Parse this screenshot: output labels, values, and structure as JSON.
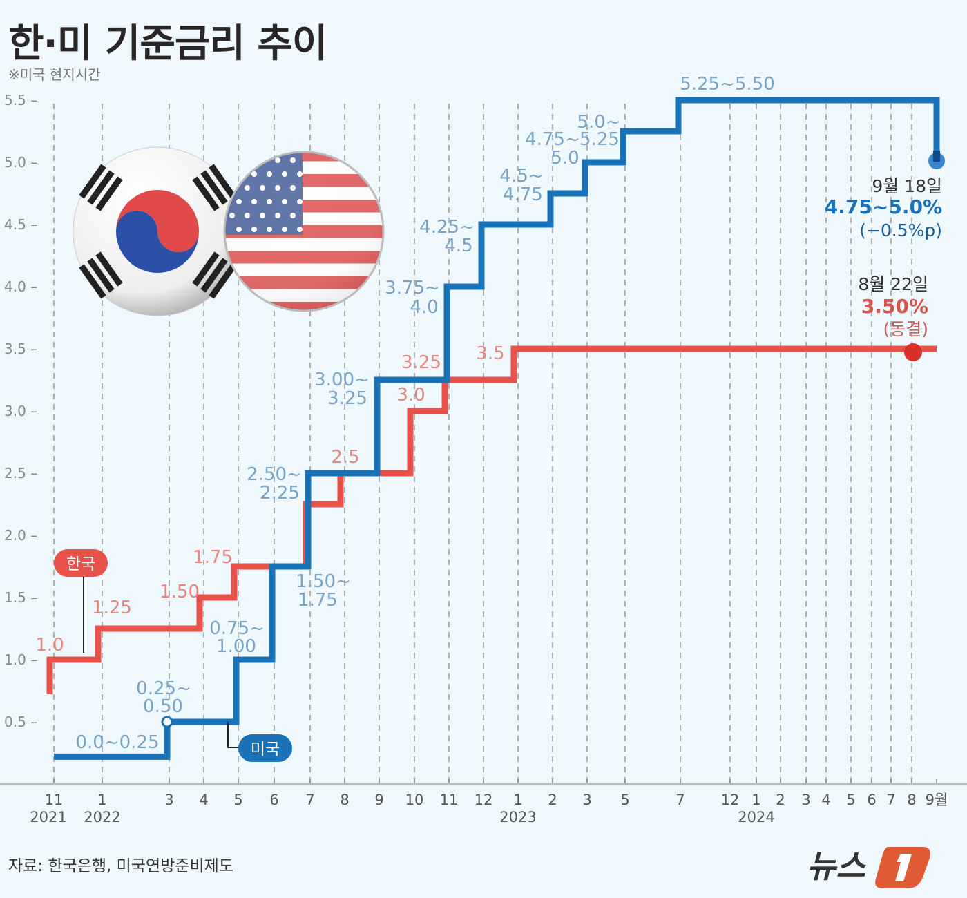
{
  "title": "한·미 기준금리 추이",
  "subtitle": "※미국 현지시간",
  "source": "자료: 한국은행, 미국연방준비제도",
  "logo_text": "뉴스1",
  "colors": {
    "korea": "#e8524a",
    "us": "#1a72b8",
    "korea_label": "#e8857f",
    "us_label": "#7ba3c4",
    "background": "#eff8fd"
  },
  "chart_data": {
    "type": "line",
    "step": true,
    "ylim": [
      0,
      5.5
    ],
    "yticks": [
      "5.5",
      "5.0",
      "4.5",
      "4.0",
      "3.5",
      "3.0",
      "2.5",
      "2.0",
      "1.5",
      "1.0",
      "0.5"
    ],
    "x_scale": "categorical-months",
    "xticks": [
      {
        "x": "2021-11",
        "month": "11",
        "year": "2021"
      },
      {
        "x": "2022-01",
        "month": "1",
        "year": "2022"
      },
      {
        "x": "2022-03",
        "month": "3"
      },
      {
        "x": "2022-04",
        "month": "4"
      },
      {
        "x": "2022-05",
        "month": "5"
      },
      {
        "x": "2022-06",
        "month": "6"
      },
      {
        "x": "2022-07",
        "month": "7"
      },
      {
        "x": "2022-08",
        "month": "8"
      },
      {
        "x": "2022-09",
        "month": "9"
      },
      {
        "x": "2022-10",
        "month": "10"
      },
      {
        "x": "2022-11",
        "month": "11"
      },
      {
        "x": "2022-12",
        "month": "12"
      },
      {
        "x": "2023-01",
        "month": "1",
        "year": "2023"
      },
      {
        "x": "2023-02",
        "month": "2"
      },
      {
        "x": "2023-03",
        "month": "3"
      },
      {
        "x": "2023-05",
        "month": "5"
      },
      {
        "x": "2023-07",
        "month": "7"
      },
      {
        "x": "2023-12",
        "month": "12"
      },
      {
        "x": "2024-01",
        "month": "1",
        "year": "2024"
      },
      {
        "x": "2024-02",
        "month": "2"
      },
      {
        "x": "2024-03",
        "month": "3"
      },
      {
        "x": "2024-04",
        "month": "4"
      },
      {
        "x": "2024-05",
        "month": "5"
      },
      {
        "x": "2024-06",
        "month": "6"
      },
      {
        "x": "2024-07",
        "month": "7"
      },
      {
        "x": "2024-08",
        "month": "8"
      },
      {
        "x": "2024-09",
        "month": "9월"
      }
    ],
    "series": [
      {
        "name": "한국",
        "key": "korea",
        "start_value": 0.75,
        "points": [
          [
            "2021-11",
            1.0
          ],
          [
            "2022-01",
            1.25
          ],
          [
            "2022-04",
            1.5
          ],
          [
            "2022-05",
            1.75
          ],
          [
            "2022-07",
            2.25
          ],
          [
            "2022-08",
            2.5
          ],
          [
            "2022-10",
            3.0
          ],
          [
            "2022-11",
            3.25
          ],
          [
            "2023-01",
            3.5
          ],
          [
            "2024-09",
            3.5
          ]
        ],
        "labels": [
          "1.0",
          "1.25",
          "1.50",
          "1.75",
          "2.5",
          "3.0",
          "3.25",
          "3.5"
        ]
      },
      {
        "name": "미국",
        "key": "us",
        "start_value": 0.25,
        "points": [
          [
            "2021-11",
            0.25
          ],
          [
            "2022-03",
            0.5
          ],
          [
            "2022-05",
            1.0
          ],
          [
            "2022-06",
            1.75
          ],
          [
            "2022-07",
            2.5
          ],
          [
            "2022-09",
            3.25
          ],
          [
            "2022-11",
            4.0
          ],
          [
            "2022-12",
            4.5
          ],
          [
            "2023-02",
            4.75
          ],
          [
            "2023-03",
            5.0
          ],
          [
            "2023-05",
            5.25
          ],
          [
            "2023-07",
            5.5
          ],
          [
            "2024-09",
            5.0
          ]
        ],
        "labels": [
          "0.0~0.25",
          "0.25~",
          "0.50",
          "0.75~",
          "1.00",
          "1.50~",
          "1.75",
          "2.50~",
          "2.25",
          "3.00~",
          "3.25",
          "3.75~",
          "4.0",
          "4.25~",
          "4.5",
          "4.5~",
          "4.75",
          "5.0~",
          "4.75~",
          "5.25",
          "5.0",
          "5.25~5.50"
        ]
      }
    ],
    "annotations": {
      "us_latest": {
        "date": "9월 18일",
        "rate": "4.75~5.0%",
        "change": "(−0.5%p)"
      },
      "korea_latest": {
        "date": "8월 22일",
        "rate": "3.50%",
        "change": "(동결)"
      }
    }
  }
}
